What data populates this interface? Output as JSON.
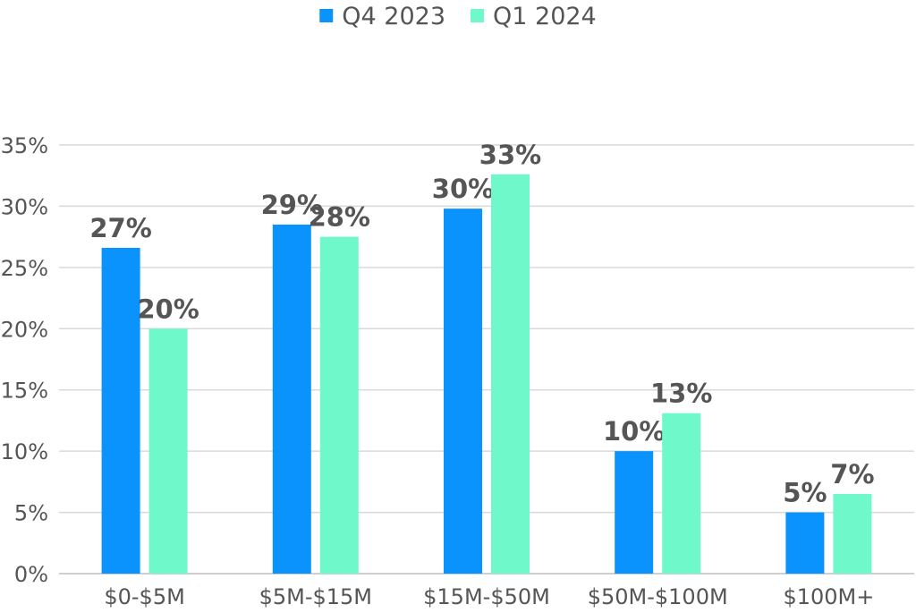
{
  "chart_data": {
    "type": "bar",
    "categories": [
      "$0-$5M",
      "$5M-$15M",
      "$15M-$50M",
      "$50M-$100M",
      "$100M+"
    ],
    "series": [
      {
        "name": "Q4 2023",
        "color": "#0a93fc",
        "values": [
          26.6,
          28.5,
          29.8,
          10.0,
          5.0
        ],
        "labels": [
          "27%",
          "29%",
          "30%",
          "10%",
          "5%"
        ]
      },
      {
        "name": "Q1 2024",
        "color": "#6ff8c9",
        "values": [
          20.0,
          27.5,
          32.6,
          13.1,
          6.5
        ],
        "labels": [
          "20%",
          "28%",
          "33%",
          "13%",
          "7%"
        ]
      }
    ],
    "ylim": [
      0,
      35
    ],
    "yticks": [
      0,
      5,
      10,
      15,
      20,
      25,
      30,
      35
    ],
    "ytick_labels": [
      "0%",
      "5%",
      "10%",
      "15%",
      "20%",
      "25%",
      "30%",
      "35%"
    ],
    "grid": true,
    "legend": "top-center",
    "title": "",
    "xlabel": "",
    "ylabel": ""
  }
}
